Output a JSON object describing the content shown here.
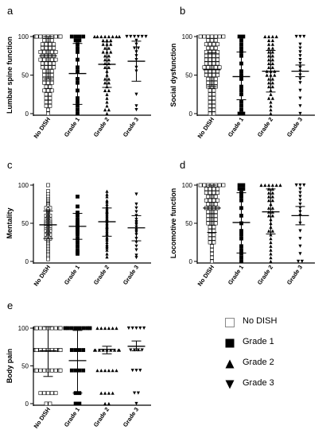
{
  "chart_data": [
    {
      "panel": "a",
      "type": "scatter",
      "ylabel": "Lumbar spine function",
      "categories": [
        "No DISH",
        "Grade 1",
        "Grade 2",
        "Grade 3"
      ],
      "ylim": [
        0,
        100
      ],
      "yticks": [
        0,
        50,
        100
      ],
      "summary": [
        {
          "mean": 75,
          "sd_low": 45,
          "sd_high": 100
        },
        {
          "mean": 52,
          "sd_low": 12,
          "sd_high": 91
        },
        {
          "mean": 64,
          "sd_low": 34,
          "sd_high": 93
        },
        {
          "mean": 68,
          "sd_low": 42,
          "sd_high": 94
        }
      ],
      "points": [
        [
          100,
          100,
          100,
          100,
          100,
          100,
          100,
          100,
          100,
          95,
          95,
          95,
          90,
          90,
          90,
          90,
          85,
          85,
          85,
          85,
          80,
          80,
          80,
          80,
          80,
          75,
          75,
          75,
          75,
          70,
          70,
          70,
          70,
          70,
          65,
          65,
          65,
          65,
          60,
          60,
          60,
          60,
          55,
          55,
          55,
          50,
          50,
          50,
          45,
          45,
          45,
          40,
          40,
          40,
          35,
          35,
          30,
          30,
          30,
          25,
          25,
          20,
          20,
          15,
          15,
          10,
          10,
          5,
          0
        ],
        [
          100,
          100,
          100,
          100,
          95,
          95,
          90,
          85,
          80,
          70,
          60,
          55,
          45,
          40,
          30,
          20,
          15,
          10,
          5,
          0
        ],
        [
          100,
          100,
          100,
          100,
          100,
          100,
          100,
          100,
          95,
          95,
          95,
          90,
          90,
          90,
          85,
          85,
          80,
          80,
          80,
          75,
          75,
          70,
          70,
          65,
          65,
          60,
          60,
          55,
          50,
          45,
          45,
          40,
          40,
          35,
          30,
          30,
          25,
          20,
          15,
          10,
          5,
          5,
          0
        ],
        [
          100,
          100,
          100,
          100,
          100,
          100,
          95,
          90,
          85,
          85,
          80,
          75,
          70,
          60,
          55,
          25,
          10,
          5
        ]
      ]
    },
    {
      "panel": "b",
      "type": "scatter",
      "ylabel": "Social dysfunction",
      "categories": [
        "No DISH",
        "Grade 1",
        "Grade 2",
        "Grade 3"
      ],
      "ylim": [
        0,
        100
      ],
      "yticks": [
        0,
        50,
        100
      ],
      "summary": [
        {
          "mean": 57,
          "sd_low": 35,
          "sd_high": 79
        },
        {
          "mean": 48,
          "sd_low": 18,
          "sd_high": 80
        },
        {
          "mean": 55,
          "sd_low": 28,
          "sd_high": 82
        },
        {
          "mean": 55,
          "sd_low": 48,
          "sd_high": 63
        }
      ],
      "points": [
        [
          100,
          100,
          100,
          100,
          100,
          100,
          100,
          95,
          95,
          95,
          90,
          90,
          90,
          90,
          85,
          85,
          85,
          80,
          80,
          80,
          80,
          75,
          75,
          75,
          75,
          70,
          70,
          70,
          70,
          65,
          65,
          65,
          65,
          60,
          60,
          60,
          60,
          60,
          55,
          55,
          55,
          55,
          50,
          50,
          50,
          50,
          45,
          45,
          45,
          40,
          40,
          40,
          35,
          35,
          35,
          30,
          30,
          25,
          25,
          20,
          20,
          15,
          15,
          10,
          10,
          5,
          5,
          0,
          0
        ],
        [
          100,
          100,
          95,
          90,
          85,
          80,
          75,
          65,
          55,
          50,
          45,
          35,
          30,
          25,
          15,
          10,
          5,
          0,
          0
        ],
        [
          100,
          100,
          100,
          100,
          95,
          95,
          90,
          90,
          85,
          85,
          80,
          80,
          75,
          75,
          70,
          70,
          65,
          65,
          60,
          60,
          55,
          55,
          55,
          50,
          50,
          50,
          45,
          45,
          40,
          40,
          35,
          35,
          30,
          25,
          20,
          20,
          15,
          10,
          5,
          0
        ],
        [
          100,
          100,
          100,
          90,
          85,
          80,
          75,
          70,
          65,
          60,
          55,
          50,
          45,
          40,
          30,
          20,
          10,
          0
        ]
      ]
    },
    {
      "panel": "c",
      "type": "scatter",
      "ylabel": "Mentality",
      "categories": [
        "No DISH",
        "Grade 1",
        "Grade 2",
        "Grade 3"
      ],
      "ylim": [
        0,
        100
      ],
      "yticks": [
        0,
        50,
        100
      ],
      "summary": [
        {
          "mean": 48,
          "sd_low": 30,
          "sd_high": 66
        },
        {
          "mean": 46,
          "sd_low": 29,
          "sd_high": 63
        },
        {
          "mean": 52,
          "sd_low": 33,
          "sd_high": 70
        },
        {
          "mean": 44,
          "sd_low": 27,
          "sd_high": 60
        }
      ],
      "points": [
        [
          100,
          92,
          88,
          85,
          82,
          80,
          78,
          76,
          75,
          74,
          72,
          70,
          70,
          68,
          66,
          65,
          64,
          63,
          62,
          61,
          60,
          60,
          59,
          58,
          57,
          56,
          55,
          55,
          54,
          53,
          52,
          52,
          51,
          50,
          50,
          49,
          48,
          48,
          47,
          46,
          45,
          45,
          44,
          43,
          42,
          42,
          41,
          40,
          40,
          39,
          38,
          37,
          36,
          35,
          35,
          34,
          33,
          32,
          30,
          30,
          28,
          27,
          25,
          24,
          22,
          20,
          18,
          16,
          14,
          12,
          10,
          8,
          5,
          3
        ],
        [
          85,
          72,
          64,
          60,
          55,
          52,
          50,
          48,
          46,
          45,
          44,
          42,
          40,
          38,
          35,
          30,
          25,
          20,
          15,
          12,
          10
        ],
        [
          92,
          88,
          85,
          80,
          78,
          75,
          72,
          70,
          68,
          66,
          65,
          64,
          62,
          60,
          58,
          56,
          55,
          54,
          52,
          50,
          48,
          46,
          45,
          44,
          42,
          40,
          38,
          36,
          35,
          32,
          30,
          28,
          25,
          22,
          20,
          18,
          15,
          10,
          6
        ],
        [
          88,
          75,
          70,
          65,
          60,
          55,
          52,
          50,
          48,
          45,
          42,
          40,
          38,
          35,
          30,
          25,
          20,
          15,
          8,
          5
        ]
      ]
    },
    {
      "panel": "d",
      "type": "scatter",
      "ylabel": "Locomotive function",
      "categories": [
        "No DISH",
        "Grade 1",
        "Grade 2",
        "Grade 3"
      ],
      "ylim": [
        0,
        100
      ],
      "yticks": [
        0,
        50,
        100
      ],
      "summary": [
        {
          "mean": 70,
          "sd_low": 38,
          "sd_high": 100
        },
        {
          "mean": 51,
          "sd_low": 11,
          "sd_high": 90
        },
        {
          "mean": 65,
          "sd_low": 36,
          "sd_high": 95
        },
        {
          "mean": 60,
          "sd_low": 48,
          "sd_high": 72
        }
      ],
      "points": [
        [
          100,
          100,
          100,
          100,
          100,
          100,
          100,
          95,
          95,
          95,
          95,
          90,
          90,
          90,
          90,
          85,
          85,
          85,
          80,
          80,
          80,
          80,
          75,
          75,
          75,
          70,
          70,
          70,
          70,
          65,
          65,
          65,
          60,
          60,
          60,
          55,
          55,
          55,
          50,
          50,
          50,
          45,
          45,
          40,
          40,
          35,
          35,
          30,
          30,
          25,
          25,
          20,
          15,
          10,
          5,
          0
        ],
        [
          100,
          100,
          95,
          95,
          90,
          85,
          80,
          70,
          60,
          50,
          40,
          35,
          30,
          20,
          15,
          10,
          5,
          0
        ],
        [
          100,
          100,
          100,
          100,
          100,
          100,
          95,
          95,
          90,
          90,
          85,
          85,
          80,
          80,
          75,
          70,
          70,
          65,
          65,
          60,
          60,
          55,
          50,
          45,
          40,
          40,
          35,
          30,
          25,
          20,
          15,
          10,
          5,
          0
        ],
        [
          100,
          100,
          100,
          95,
          90,
          85,
          80,
          75,
          70,
          65,
          60,
          50,
          40,
          30,
          20,
          10,
          0,
          0
        ]
      ]
    },
    {
      "panel": "e",
      "type": "scatter",
      "ylabel": "Body pain",
      "categories": [
        "No DISH",
        "Grade 1",
        "Grade 2",
        "Grade 3"
      ],
      "ylim": [
        0,
        100
      ],
      "yticks": [
        0,
        50,
        100
      ],
      "summary": [
        {
          "mean": 70,
          "sd_low": 36,
          "sd_high": 102
        },
        {
          "mean": 57,
          "sd_low": 14,
          "sd_high": 97
        },
        {
          "mean": 72,
          "sd_low": 66,
          "sd_high": 76
        },
        {
          "mean": 76,
          "sd_low": 70,
          "sd_high": 83
        }
      ],
      "points": [
        [
          100,
          100,
          100,
          100,
          100,
          100,
          100,
          100,
          100,
          100,
          100,
          71,
          71,
          71,
          71,
          71,
          71,
          71,
          71,
          71,
          71,
          71,
          71,
          71,
          44,
          44,
          44,
          44,
          44,
          44,
          44,
          44,
          44,
          14,
          14,
          14,
          14,
          14,
          0,
          0
        ],
        [
          100,
          100,
          100,
          100,
          100,
          100,
          100,
          100,
          71,
          71,
          71,
          71,
          44,
          44,
          44,
          44,
          14,
          14,
          0,
          0
        ],
        [
          100,
          100,
          100,
          100,
          100,
          100,
          71,
          71,
          71,
          71,
          71,
          71,
          71,
          71,
          71,
          44,
          44,
          44,
          44,
          44,
          44,
          14,
          14,
          14,
          14,
          0,
          0
        ],
        [
          100,
          100,
          100,
          100,
          100,
          71,
          71,
          71,
          71,
          44,
          44,
          44,
          14,
          14,
          0
        ]
      ]
    }
  ],
  "legend": {
    "items": [
      {
        "label": "No DISH",
        "marker": "open-square"
      },
      {
        "label": "Grade 1",
        "marker": "filled-square"
      },
      {
        "label": "Grade 2",
        "marker": "triangle-up"
      },
      {
        "label": "Grade 3",
        "marker": "triangle-down"
      }
    ]
  }
}
